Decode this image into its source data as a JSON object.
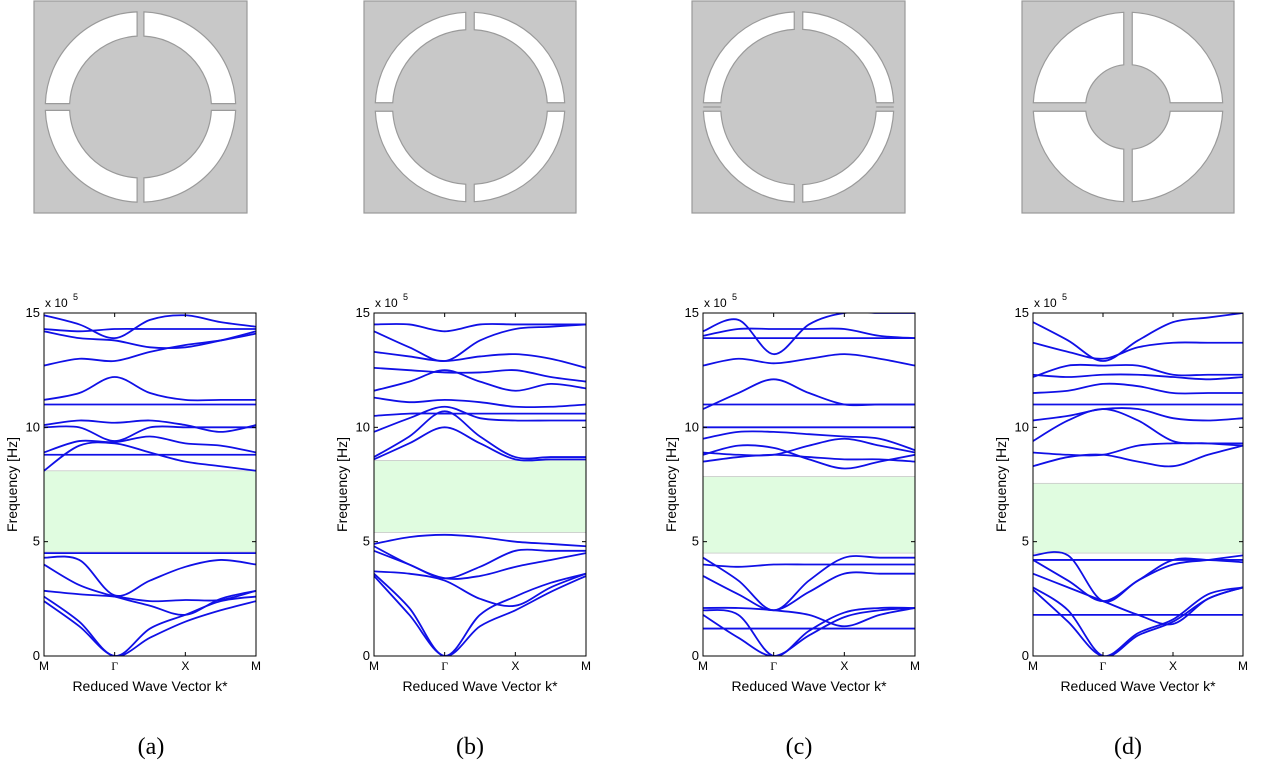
{
  "figure": {
    "panels": [
      {
        "label": "(a)",
        "unit_cell": "split-ring-a"
      },
      {
        "label": "(b)",
        "unit_cell": "split-ring-b"
      },
      {
        "label": "(c)",
        "unit_cell": "split-ring-c"
      },
      {
        "label": "(d)",
        "unit_cell": "split-ring-d"
      }
    ],
    "colors": {
      "band": "#1010e6",
      "gap": "#e0fce0",
      "cell_fill": "#c8c8c8",
      "cell_stroke": "#9a9a9a",
      "slot_fill": "#ffffff"
    }
  },
  "chart_data": [
    {
      "type": "line",
      "panel": "(a)",
      "xlabel": "Reduced Wave Vector k*",
      "ylabel": "Frequency [Hz]",
      "y_multiplier": "x 10",
      "y_exponent": "5",
      "ylim": [
        0,
        15
      ],
      "xlim": [
        0,
        3
      ],
      "x_ticks": [
        {
          "pos": 0,
          "label": "M"
        },
        {
          "pos": 1,
          "label": "Γ"
        },
        {
          "pos": 2,
          "label": "X"
        },
        {
          "pos": 3,
          "label": "M"
        }
      ],
      "y_ticks": [
        {
          "v": 0,
          "label": "0"
        },
        {
          "v": 5,
          "label": "5"
        },
        {
          "v": 10,
          "label": "10"
        },
        {
          "v": 15,
          "label": "15"
        }
      ],
      "band_gap": [
        4.55,
        8.1
      ],
      "x": [
        0,
        0.5,
        1,
        1.5,
        2,
        2.5,
        3
      ],
      "series": [
        {
          "values": [
            2.4,
            1.3,
            0,
            0.8,
            1.5,
            2.0,
            2.4
          ]
        },
        {
          "values": [
            2.6,
            1.5,
            0,
            1.2,
            1.8,
            2.4,
            2.6
          ]
        },
        {
          "values": [
            2.85,
            2.7,
            2.6,
            2.4,
            2.45,
            2.45,
            2.85
          ]
        },
        {
          "values": [
            4.0,
            3.1,
            2.6,
            2.2,
            1.8,
            2.5,
            2.85
          ]
        },
        {
          "values": [
            4.3,
            4.2,
            2.65,
            3.3,
            3.9,
            4.2,
            4.0
          ]
        },
        {
          "values": [
            4.5,
            4.5,
            4.5,
            4.5,
            4.5,
            4.5,
            4.5
          ]
        },
        {
          "values": [
            8.1,
            9.2,
            9.3,
            8.9,
            8.5,
            8.3,
            8.1
          ]
        },
        {
          "values": [
            8.8,
            8.8,
            8.8,
            8.8,
            8.8,
            8.8,
            8.8
          ]
        },
        {
          "values": [
            8.9,
            9.4,
            9.35,
            9.6,
            9.3,
            9.2,
            8.9
          ]
        },
        {
          "values": [
            10.0,
            10.0,
            9.4,
            10.0,
            10.0,
            10.0,
            10.0
          ]
        },
        {
          "values": [
            10.1,
            10.3,
            10.2,
            10.3,
            10.1,
            9.8,
            10.1
          ]
        },
        {
          "values": [
            11.0,
            11.0,
            11.0,
            11.0,
            11.0,
            11.0,
            11.0
          ]
        },
        {
          "values": [
            11.2,
            11.5,
            12.2,
            11.5,
            11.2,
            11.2,
            11.2
          ]
        },
        {
          "values": [
            12.7,
            13.0,
            12.9,
            13.3,
            13.6,
            13.8,
            14.1
          ]
        },
        {
          "values": [
            14.2,
            13.9,
            13.8,
            13.5,
            13.5,
            13.8,
            14.2
          ]
        },
        {
          "values": [
            14.3,
            14.2,
            14.3,
            14.3,
            14.3,
            14.3,
            14.3
          ]
        },
        {
          "values": [
            14.9,
            14.5,
            13.9,
            14.7,
            14.9,
            14.6,
            14.4
          ]
        }
      ]
    },
    {
      "type": "line",
      "panel": "(b)",
      "xlabel": "Reduced Wave Vector k*",
      "ylabel": "Frequency [Hz]",
      "y_multiplier": "x 10",
      "y_exponent": "5",
      "ylim": [
        0,
        15
      ],
      "xlim": [
        0,
        3
      ],
      "x_ticks": [
        {
          "pos": 0,
          "label": "M"
        },
        {
          "pos": 1,
          "label": "Γ"
        },
        {
          "pos": 2,
          "label": "X"
        },
        {
          "pos": 3,
          "label": "M"
        }
      ],
      "y_ticks": [
        {
          "v": 0,
          "label": "0"
        },
        {
          "v": 5,
          "label": "5"
        },
        {
          "v": 10,
          "label": "10"
        },
        {
          "v": 15,
          "label": "15"
        }
      ],
      "band_gap": [
        5.4,
        8.55
      ],
      "x": [
        0,
        0.5,
        1,
        1.5,
        2,
        2.5,
        3
      ],
      "series": [
        {
          "values": [
            3.5,
            1.8,
            0,
            1.3,
            2.0,
            2.8,
            3.5
          ]
        },
        {
          "values": [
            3.6,
            2.1,
            0,
            1.8,
            2.6,
            3.2,
            3.6
          ]
        },
        {
          "values": [
            3.7,
            3.6,
            3.3,
            2.5,
            2.2,
            3.0,
            3.6
          ]
        },
        {
          "values": [
            4.6,
            4.0,
            3.4,
            3.9,
            4.6,
            4.6,
            4.6
          ]
        },
        {
          "values": [
            4.8,
            4.0,
            3.4,
            3.5,
            3.9,
            4.2,
            4.5
          ]
        },
        {
          "values": [
            4.9,
            5.2,
            5.3,
            5.2,
            5.0,
            4.9,
            4.8
          ]
        },
        {
          "values": [
            8.6,
            9.3,
            10.0,
            9.3,
            8.6,
            8.6,
            8.6
          ]
        },
        {
          "values": [
            8.7,
            9.6,
            10.7,
            9.6,
            8.7,
            8.7,
            8.7
          ]
        },
        {
          "values": [
            9.8,
            10.4,
            10.9,
            10.4,
            10.3,
            10.3,
            10.3
          ]
        },
        {
          "values": [
            10.5,
            10.6,
            10.6,
            10.6,
            10.6,
            10.6,
            10.6
          ]
        },
        {
          "values": [
            11.3,
            11.1,
            11.2,
            11.1,
            10.9,
            10.9,
            11.0
          ]
        },
        {
          "values": [
            11.6,
            12.0,
            12.5,
            12.0,
            11.6,
            11.9,
            11.7
          ]
        },
        {
          "values": [
            12.6,
            12.5,
            12.4,
            12.4,
            12.5,
            12.2,
            12.0
          ]
        },
        {
          "values": [
            13.3,
            13.1,
            12.9,
            13.1,
            13.2,
            13.0,
            12.6
          ]
        },
        {
          "values": [
            14.2,
            13.5,
            12.9,
            13.8,
            14.3,
            14.4,
            14.5
          ]
        },
        {
          "values": [
            14.5,
            14.5,
            14.2,
            14.5,
            14.5,
            14.5,
            14.5
          ]
        }
      ]
    },
    {
      "type": "line",
      "panel": "(c)",
      "xlabel": "Reduced Wave Vector k*",
      "ylabel": "Frequency [Hz]",
      "y_multiplier": "x 10",
      "y_exponent": "5",
      "ylim": [
        0,
        15
      ],
      "xlim": [
        0,
        3
      ],
      "x_ticks": [
        {
          "pos": 0,
          "label": "M"
        },
        {
          "pos": 1,
          "label": "Γ"
        },
        {
          "pos": 2,
          "label": "X"
        },
        {
          "pos": 3,
          "label": "M"
        }
      ],
      "y_ticks": [
        {
          "v": 0,
          "label": "0"
        },
        {
          "v": 5,
          "label": "5"
        },
        {
          "v": 10,
          "label": "10"
        },
        {
          "v": 15,
          "label": "15"
        }
      ],
      "band_gap": [
        4.5,
        7.85
      ],
      "x": [
        0,
        0.5,
        1,
        1.5,
        2,
        2.5,
        3
      ],
      "series": [
        {
          "values": [
            1.2,
            1.2,
            1.2,
            1.2,
            1.2,
            1.2,
            1.2
          ]
        },
        {
          "values": [
            1.8,
            0.8,
            0,
            0.9,
            1.7,
            2.0,
            2.1
          ]
        },
        {
          "values": [
            2.0,
            1.8,
            0,
            1.1,
            1.9,
            2.1,
            2.1
          ]
        },
        {
          "values": [
            2.1,
            2.1,
            2.0,
            1.8,
            1.3,
            1.8,
            2.1
          ]
        },
        {
          "values": [
            3.5,
            2.7,
            2.0,
            2.8,
            3.6,
            3.6,
            3.6
          ]
        },
        {
          "values": [
            4.0,
            3.9,
            4.0,
            4.0,
            4.0,
            4.0,
            4.0
          ]
        },
        {
          "values": [
            4.3,
            3.3,
            2.0,
            3.3,
            4.3,
            4.3,
            4.3
          ]
        },
        {
          "values": [
            8.5,
            8.7,
            8.8,
            8.7,
            8.6,
            8.6,
            8.5
          ]
        },
        {
          "values": [
            8.8,
            9.2,
            9.1,
            8.6,
            8.2,
            8.5,
            8.8
          ]
        },
        {
          "values": [
            8.9,
            8.8,
            8.8,
            9.2,
            9.5,
            9.2,
            8.9
          ]
        },
        {
          "values": [
            9.5,
            9.8,
            9.8,
            9.7,
            9.6,
            9.5,
            9.0
          ]
        },
        {
          "values": [
            10.0,
            10.0,
            10.0,
            10.0,
            10.0,
            10.0,
            10.0
          ]
        },
        {
          "values": [
            11.0,
            11.0,
            11.0,
            11.0,
            11.0,
            11.0,
            11.0
          ]
        },
        {
          "values": [
            10.8,
            11.5,
            12.1,
            11.5,
            11.0,
            11.0,
            11.0
          ]
        },
        {
          "values": [
            12.7,
            13.0,
            12.8,
            13.0,
            13.2,
            13.0,
            12.7
          ]
        },
        {
          "values": [
            13.9,
            13.9,
            13.9,
            13.9,
            13.9,
            13.9,
            13.9
          ]
        },
        {
          "values": [
            14.0,
            14.3,
            14.3,
            14.3,
            14.3,
            14.0,
            13.9
          ]
        },
        {
          "values": [
            14.2,
            14.7,
            13.2,
            14.5,
            15.0,
            15.0,
            15.0
          ]
        }
      ]
    },
    {
      "type": "line",
      "panel": "(d)",
      "xlabel": "Reduced Wave Vector k*",
      "ylabel": "Frequency [Hz]",
      "y_multiplier": "x 10",
      "y_exponent": "5",
      "ylim": [
        0,
        15
      ],
      "xlim": [
        0,
        3
      ],
      "x_ticks": [
        {
          "pos": 0,
          "label": "M"
        },
        {
          "pos": 1,
          "label": "Γ"
        },
        {
          "pos": 2,
          "label": "X"
        },
        {
          "pos": 3,
          "label": "M"
        }
      ],
      "y_ticks": [
        {
          "v": 0,
          "label": "0"
        },
        {
          "v": 5,
          "label": "5"
        },
        {
          "v": 10,
          "label": "10"
        },
        {
          "v": 15,
          "label": "15"
        }
      ],
      "band_gap": [
        4.5,
        7.55
      ],
      "x": [
        0,
        0.5,
        1,
        1.5,
        2,
        2.5,
        3
      ],
      "series": [
        {
          "values": [
            1.8,
            1.8,
            1.8,
            1.8,
            1.8,
            1.8,
            1.8
          ]
        },
        {
          "values": [
            2.9,
            1.5,
            0,
            1.0,
            1.6,
            2.7,
            3.0
          ]
        },
        {
          "values": [
            3.0,
            2.0,
            0,
            0.9,
            1.5,
            2.5,
            3.0
          ]
        },
        {
          "values": [
            3.6,
            3.0,
            2.4,
            1.8,
            1.4,
            2.5,
            3.0
          ]
        },
        {
          "values": [
            4.2,
            3.3,
            2.4,
            3.3,
            4.2,
            4.2,
            4.1
          ]
        },
        {
          "values": [
            4.2,
            4.2,
            4.2,
            4.2,
            4.2,
            4.2,
            4.2
          ]
        },
        {
          "values": [
            4.4,
            4.4,
            2.4,
            3.3,
            4.0,
            4.2,
            4.4
          ]
        },
        {
          "values": [
            8.3,
            8.7,
            8.8,
            8.5,
            8.3,
            8.8,
            9.2
          ]
        },
        {
          "values": [
            8.9,
            8.8,
            8.8,
            9.2,
            9.3,
            9.3,
            9.3
          ]
        },
        {
          "values": [
            9.4,
            10.3,
            10.8,
            10.3,
            9.4,
            9.3,
            9.2
          ]
        },
        {
          "values": [
            10.3,
            10.5,
            10.8,
            10.8,
            10.4,
            10.3,
            10.4
          ]
        },
        {
          "values": [
            11.0,
            11.0,
            11.0,
            11.0,
            11.0,
            11.0,
            11.0
          ]
        },
        {
          "values": [
            11.5,
            11.6,
            11.9,
            11.8,
            11.5,
            11.5,
            11.5
          ]
        },
        {
          "values": [
            12.3,
            12.2,
            12.3,
            12.3,
            12.2,
            12.1,
            12.2
          ]
        },
        {
          "values": [
            12.2,
            12.7,
            12.7,
            12.7,
            12.3,
            12.3,
            12.3
          ]
        },
        {
          "values": [
            13.7,
            13.3,
            13.0,
            13.5,
            13.7,
            13.7,
            13.7
          ]
        },
        {
          "values": [
            14.6,
            13.8,
            12.9,
            13.8,
            14.6,
            14.8,
            15.0
          ]
        }
      ]
    }
  ]
}
